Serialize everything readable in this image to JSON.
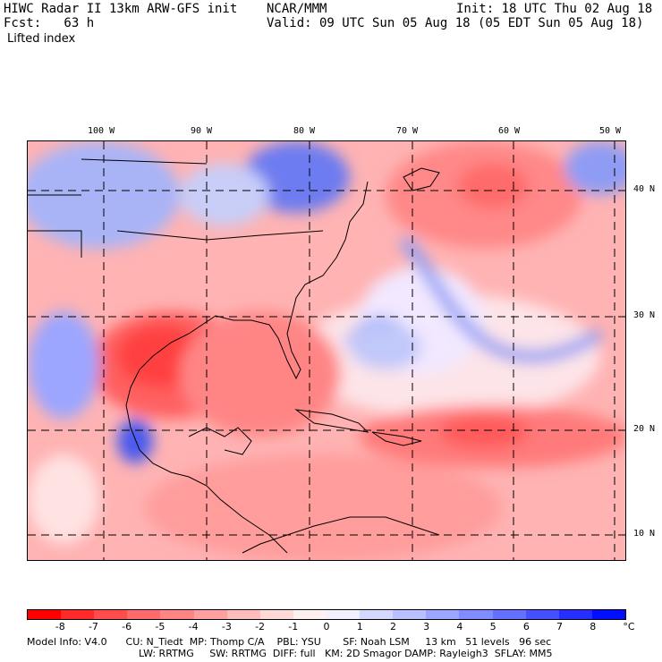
{
  "header": {
    "line1_left": "HIWC Radar II 13km ARW-GFS init",
    "line1_mid": "NCAR/MMM",
    "line1_right": "Init: 18 UTC Thu 02 Aug 18",
    "line2_left": "Fcst:   63 h",
    "line2_right": "Valid: 09 UTC Sun 05 Aug 18 (05 EDT Sun 05 Aug 18)",
    "field": "Lifted index"
  },
  "map": {
    "lon_labels": [
      "100 W",
      "90 W",
      "80 W",
      "70 W",
      "60 W",
      "50 W"
    ],
    "lat_labels": [
      "40 N",
      "30 N",
      "20 N",
      "10 N"
    ]
  },
  "colorbar": {
    "unit": "°C",
    "labels": [
      "-8",
      "-7",
      "-6",
      "-5",
      "-4",
      "-3",
      "-2",
      "-1",
      "0",
      "1",
      "2",
      "3",
      "4",
      "5",
      "6",
      "7",
      "8"
    ],
    "colors": [
      "#ff0000",
      "#ff2a2a",
      "#ff4d4d",
      "#ff6a6a",
      "#ff8585",
      "#ffa0a0",
      "#ffbcbc",
      "#ffd8d8",
      "#fff0f0",
      "#f0f0ff",
      "#d4d8ff",
      "#b8c0ff",
      "#9ca6ff",
      "#808cff",
      "#6470ff",
      "#4550ff",
      "#2530ff",
      "#0010ff"
    ]
  },
  "footer": {
    "line1": "Model Info: V4.0      CU: N_Tiedt  MP: Thomp C/A    PBL: YSU       SF: Noah LSM     13 km   51 levels   96 sec",
    "line2": "LW: RRTMG     SW: RRTMG  DIFF: full   KM: 2D Smagor DAMP: Rayleigh3  SFLAY: MM5"
  }
}
